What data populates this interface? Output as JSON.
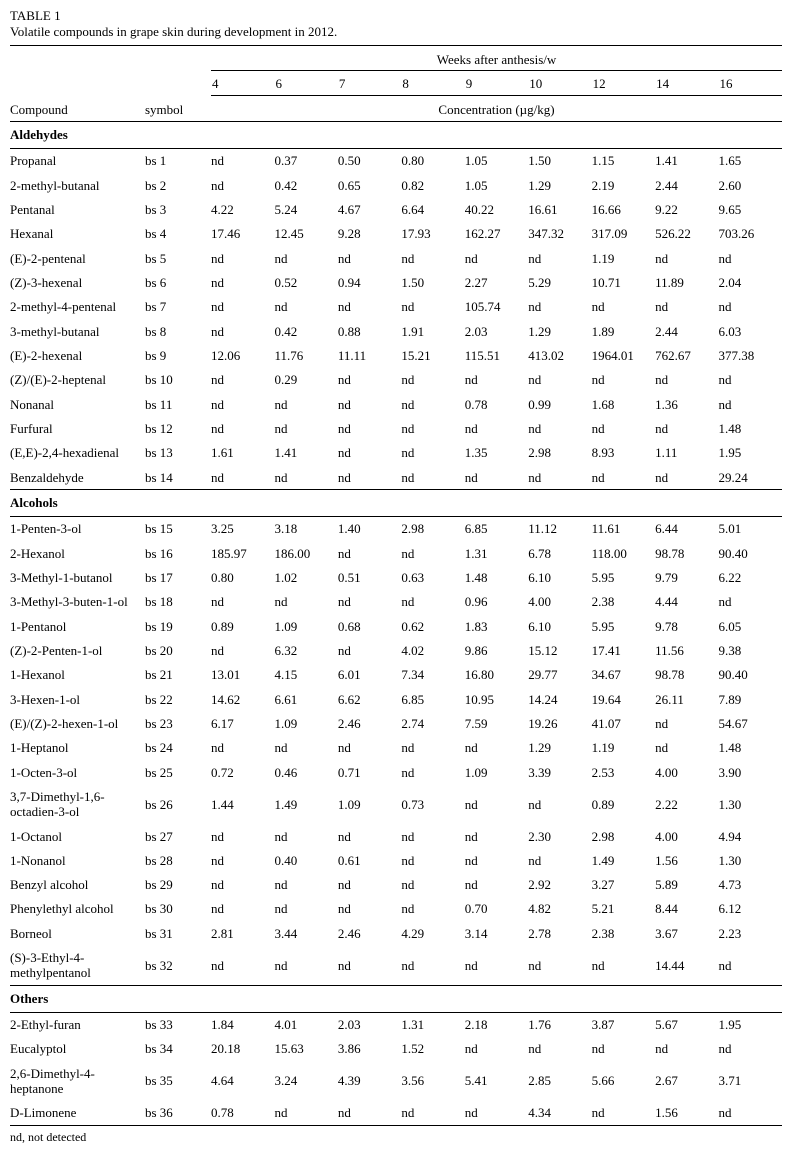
{
  "title": "TABLE 1",
  "subtitle": "Volatile compounds in grape skin during development in 2012.",
  "header": {
    "weeks_label": "Weeks after anthesis/w",
    "weeks": [
      "4",
      "6",
      "7",
      "8",
      "9",
      "10",
      "12",
      "14",
      "16"
    ],
    "compound_label": "Compound",
    "symbol_label": "symbol",
    "concentration_label": "Concentration (µg/kg)"
  },
  "sections": [
    {
      "name": "Aldehydes",
      "rows": [
        {
          "compound": "Propanal",
          "symbol": "bs 1",
          "values": [
            "nd",
            "0.37",
            "0.50",
            "0.80",
            "1.05",
            "1.50",
            "1.15",
            "1.41",
            "1.65"
          ]
        },
        {
          "compound": "2-methyl-butanal",
          "symbol": "bs 2",
          "values": [
            "nd",
            "0.42",
            "0.65",
            "0.82",
            "1.05",
            "1.29",
            "2.19",
            "2.44",
            "2.60"
          ]
        },
        {
          "compound": "Pentanal",
          "symbol": "bs 3",
          "values": [
            "4.22",
            "5.24",
            "4.67",
            "6.64",
            "40.22",
            "16.61",
            "16.66",
            "9.22",
            "9.65"
          ]
        },
        {
          "compound": "Hexanal",
          "symbol": "bs 4",
          "values": [
            "17.46",
            "12.45",
            "9.28",
            "17.93",
            "162.27",
            "347.32",
            "317.09",
            "526.22",
            "703.26"
          ]
        },
        {
          "compound": "(E)-2-pentenal",
          "symbol": "bs 5",
          "values": [
            "nd",
            "nd",
            "nd",
            "nd",
            "nd",
            "nd",
            "1.19",
            "nd",
            "nd"
          ]
        },
        {
          "compound": "(Z)-3-hexenal",
          "symbol": "bs 6",
          "values": [
            "nd",
            "0.52",
            "0.94",
            "1.50",
            "2.27",
            "5.29",
            "10.71",
            "11.89",
            "2.04"
          ]
        },
        {
          "compound": "2-methyl-4-pentenal",
          "symbol": "bs 7",
          "values": [
            "nd",
            "nd",
            "nd",
            "nd",
            "105.74",
            "nd",
            "nd",
            "nd",
            "nd"
          ]
        },
        {
          "compound": "3-methyl-butanal",
          "symbol": "bs 8",
          "values": [
            "nd",
            "0.42",
            "0.88",
            "1.91",
            "2.03",
            "1.29",
            "1.89",
            "2.44",
            "6.03"
          ]
        },
        {
          "compound": "(E)-2-hexenal",
          "symbol": "bs 9",
          "values": [
            "12.06",
            "11.76",
            "11.11",
            "15.21",
            "115.51",
            "413.02",
            "1964.01",
            "762.67",
            "377.38"
          ]
        },
        {
          "compound": "(Z)/(E)-2-heptenal",
          "symbol": "bs 10",
          "values": [
            "nd",
            "0.29",
            "nd",
            "nd",
            "nd",
            "nd",
            "nd",
            "nd",
            "nd"
          ]
        },
        {
          "compound": "Nonanal",
          "symbol": "bs 11",
          "values": [
            "nd",
            "nd",
            "nd",
            "nd",
            "0.78",
            "0.99",
            "1.68",
            "1.36",
            "nd"
          ]
        },
        {
          "compound": "Furfural",
          "symbol": "bs 12",
          "values": [
            "nd",
            "nd",
            "nd",
            "nd",
            "nd",
            "nd",
            "nd",
            "nd",
            "1.48"
          ]
        },
        {
          "compound": "(E,E)-2,4-hexadienal",
          "symbol": "bs 13",
          "values": [
            "1.61",
            "1.41",
            "nd",
            "nd",
            "1.35",
            "2.98",
            "8.93",
            "1.11",
            "1.95"
          ]
        },
        {
          "compound": "Benzaldehyde",
          "symbol": "bs 14",
          "values": [
            "nd",
            "nd",
            "nd",
            "nd",
            "nd",
            "nd",
            "nd",
            "nd",
            "29.24"
          ]
        }
      ]
    },
    {
      "name": "Alcohols",
      "rows": [
        {
          "compound": "1-Penten-3-ol",
          "symbol": "bs 15",
          "values": [
            "3.25",
            "3.18",
            "1.40",
            "2.98",
            "6.85",
            "11.12",
            "11.61",
            "6.44",
            "5.01"
          ]
        },
        {
          "compound": "2-Hexanol",
          "symbol": "bs 16",
          "values": [
            "185.97",
            "186.00",
            "nd",
            "nd",
            "1.31",
            "6.78",
            "118.00",
            "98.78",
            "90.40"
          ]
        },
        {
          "compound": "3-Methyl-1-butanol",
          "symbol": "bs 17",
          "values": [
            "0.80",
            "1.02",
            "0.51",
            "0.63",
            "1.48",
            "6.10",
            "5.95",
            "9.79",
            "6.22"
          ]
        },
        {
          "compound": "3-Methyl-3-buten-1-ol",
          "symbol": "bs 18",
          "values": [
            "nd",
            "nd",
            "nd",
            "nd",
            "0.96",
            "4.00",
            "2.38",
            "4.44",
            "nd"
          ]
        },
        {
          "compound": "1-Pentanol",
          "symbol": "bs 19",
          "values": [
            "0.89",
            "1.09",
            "0.68",
            "0.62",
            "1.83",
            "6.10",
            "5.95",
            "9.78",
            "6.05"
          ]
        },
        {
          "compound": "(Z)-2-Penten-1-ol",
          "symbol": "bs 20",
          "values": [
            "nd",
            "6.32",
            "nd",
            "4.02",
            "9.86",
            "15.12",
            "17.41",
            "11.56",
            "9.38"
          ]
        },
        {
          "compound": "1-Hexanol",
          "symbol": "bs 21",
          "values": [
            "13.01",
            "4.15",
            "6.01",
            "7.34",
            "16.80",
            "29.77",
            "34.67",
            "98.78",
            "90.40"
          ]
        },
        {
          "compound": "3-Hexen-1-ol",
          "symbol": "bs 22",
          "values": [
            "14.62",
            "6.61",
            "6.62",
            "6.85",
            "10.95",
            "14.24",
            "19.64",
            "26.11",
            "7.89"
          ]
        },
        {
          "compound": "(E)/(Z)-2-hexen-1-ol",
          "symbol": "bs 23",
          "values": [
            "6.17",
            "1.09",
            "2.46",
            "2.74",
            "7.59",
            "19.26",
            "41.07",
            "nd",
            "54.67"
          ]
        },
        {
          "compound": "1-Heptanol",
          "symbol": "bs 24",
          "values": [
            "nd",
            "nd",
            "nd",
            "nd",
            "nd",
            "1.29",
            "1.19",
            "nd",
            "1.48"
          ]
        },
        {
          "compound": "1-Octen-3-ol",
          "symbol": "bs 25",
          "values": [
            "0.72",
            "0.46",
            "0.71",
            "nd",
            "1.09",
            "3.39",
            "2.53",
            "4.00",
            "3.90"
          ]
        },
        {
          "compound": "3,7-Dimethyl-1,6-octadien-3-ol",
          "symbol": "bs 26",
          "values": [
            "1.44",
            "1.49",
            "1.09",
            "0.73",
            "nd",
            "nd",
            "0.89",
            "2.22",
            "1.30"
          ]
        },
        {
          "compound": "1-Octanol",
          "symbol": "bs 27",
          "values": [
            "nd",
            "nd",
            "nd",
            "nd",
            "nd",
            "2.30",
            "2.98",
            "4.00",
            "4.94"
          ]
        },
        {
          "compound": "1-Nonanol",
          "symbol": "bs 28",
          "values": [
            "nd",
            "0.40",
            "0.61",
            "nd",
            "nd",
            "nd",
            "1.49",
            "1.56",
            "1.30"
          ]
        },
        {
          "compound": "Benzyl alcohol",
          "symbol": "bs 29",
          "values": [
            "nd",
            "nd",
            "nd",
            "nd",
            "nd",
            "2.92",
            "3.27",
            "5.89",
            "4.73"
          ]
        },
        {
          "compound": "Phenylethyl alcohol",
          "symbol": "bs 30",
          "values": [
            "nd",
            "nd",
            "nd",
            "nd",
            "0.70",
            "4.82",
            "5.21",
            "8.44",
            "6.12"
          ]
        },
        {
          "compound": "Borneol",
          "symbol": "bs 31",
          "values": [
            "2.81",
            "3.44",
            "2.46",
            "4.29",
            "3.14",
            "2.78",
            "2.38",
            "3.67",
            "2.23"
          ]
        },
        {
          "compound": "(S)-3-Ethyl-4-methylpentanol",
          "symbol": "bs 32",
          "values": [
            "nd",
            "nd",
            "nd",
            "nd",
            "nd",
            "nd",
            "nd",
            "14.44",
            "nd"
          ]
        }
      ]
    },
    {
      "name": "Others",
      "rows": [
        {
          "compound": "2-Ethyl-furan",
          "symbol": "bs 33",
          "values": [
            "1.84",
            "4.01",
            "2.03",
            "1.31",
            "2.18",
            "1.76",
            "3.87",
            "5.67",
            "1.95"
          ]
        },
        {
          "compound": "Eucalyptol",
          "symbol": "bs 34",
          "values": [
            "20.18",
            "15.63",
            "3.86",
            "1.52",
            "nd",
            "nd",
            "nd",
            "nd",
            "nd"
          ]
        },
        {
          "compound": "2,6-Dimethyl-4-heptanone",
          "symbol": "bs 35",
          "values": [
            "4.64",
            "3.24",
            "4.39",
            "3.56",
            "5.41",
            "2.85",
            "5.66",
            "2.67",
            "3.71"
          ]
        },
        {
          "compound": "D-Limonene",
          "symbol": "bs 36",
          "values": [
            "0.78",
            "nd",
            "nd",
            "nd",
            "nd",
            "4.34",
            "nd",
            "1.56",
            "nd"
          ]
        }
      ]
    }
  ],
  "footnote": "nd, not detected"
}
